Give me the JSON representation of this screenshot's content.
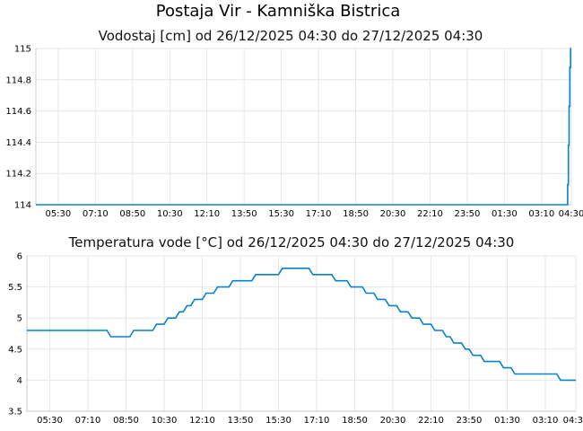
{
  "header": {
    "title": "Postaja Vir - Kamniška Bistrica"
  },
  "colors": {
    "series": "#0a82c8",
    "grid": "#e6e6e6",
    "axis": "#c8c8c8",
    "background": "#ffffff"
  },
  "chart_data": [
    {
      "type": "line",
      "title": "Vodostaj [cm] od 26/12/2025 04:30 do 27/12/2025 04:30",
      "xlabel": "",
      "ylabel": "",
      "xlim": [
        "26/12/2025 04:30",
        "27/12/2025 04:30"
      ],
      "ylim": [
        114,
        115
      ],
      "grid": true,
      "legend": "none",
      "x_tick_labels": [
        "05:30",
        "07:10",
        "08:50",
        "10:30",
        "12:10",
        "13:50",
        "15:30",
        "17:10",
        "18:50",
        "20:30",
        "22:10",
        "23:50",
        "01:30",
        "03:10",
        "04:30"
      ],
      "y_tick_labels": [
        "114",
        "114.2",
        "114.4",
        "114.6",
        "114.8",
        "115"
      ],
      "y_ticks": [
        114,
        114.2,
        114.4,
        114.6,
        114.8,
        115
      ],
      "series": [
        {
          "x": [
            "04:30",
            "04:10",
            "04:20",
            "04:20",
            "04:22",
            "04:22",
            "04:24",
            "04:24",
            "04:26",
            "04:26",
            "04:28",
            "04:28",
            "04:30"
          ],
          "values": [
            114,
            114,
            114,
            114.13,
            114.13,
            114.38,
            114.38,
            114.63,
            114.63,
            114.88,
            114.88,
            115,
            115
          ]
        }
      ]
    },
    {
      "type": "line",
      "title": "Temperatura vode [°C] od 26/12/2025 04:30 do 27/12/2025 04:30",
      "xlabel": "",
      "ylabel": "",
      "xlim": [
        "26/12/2025 04:30",
        "27/12/2025 04:30"
      ],
      "ylim": [
        3.5,
        6
      ],
      "grid": true,
      "legend": "none",
      "x_tick_labels": [
        "05:30",
        "07:10",
        "08:50",
        "10:30",
        "12:10",
        "13:50",
        "15:30",
        "17:10",
        "18:50",
        "20:30",
        "22:10",
        "23:50",
        "01:30",
        "03:10",
        "04:30"
      ],
      "y_tick_labels": [
        "3.5",
        "4",
        "4.5",
        "5",
        "5.5",
        "6"
      ],
      "y_ticks": [
        3.5,
        4,
        4.5,
        5,
        5.5,
        6
      ],
      "series": [
        {
          "x": [
            "04:30",
            "08:00",
            "08:10",
            "09:00",
            "09:10",
            "10:00",
            "10:10",
            "10:30",
            "10:40",
            "11:00",
            "11:10",
            "11:20",
            "11:30",
            "11:40",
            "11:50",
            "12:10",
            "12:20",
            "12:40",
            "12:50",
            "13:20",
            "13:30",
            "14:20",
            "14:30",
            "15:30",
            "15:40",
            "16:50",
            "17:00",
            "17:50",
            "18:00",
            "18:30",
            "18:40",
            "19:10",
            "19:20",
            "19:40",
            "19:50",
            "20:10",
            "20:20",
            "20:40",
            "20:50",
            "21:10",
            "21:20",
            "21:40",
            "21:50",
            "22:10",
            "22:20",
            "22:40",
            "22:50",
            "23:00",
            "23:10",
            "23:30",
            "23:40",
            "23:50",
            "00:00",
            "00:20",
            "00:30",
            "01:10",
            "01:20",
            "01:40",
            "01:50",
            "03:40",
            "03:50",
            "04:30"
          ],
          "values": [
            4.8,
            4.8,
            4.7,
            4.7,
            4.8,
            4.8,
            4.9,
            4.9,
            5.0,
            5.0,
            5.1,
            5.1,
            5.2,
            5.2,
            5.3,
            5.3,
            5.4,
            5.4,
            5.5,
            5.5,
            5.6,
            5.6,
            5.7,
            5.7,
            5.8,
            5.8,
            5.7,
            5.7,
            5.6,
            5.6,
            5.5,
            5.5,
            5.4,
            5.4,
            5.3,
            5.3,
            5.2,
            5.2,
            5.1,
            5.1,
            5.0,
            5.0,
            4.9,
            4.9,
            4.8,
            4.8,
            4.7,
            4.7,
            4.6,
            4.6,
            4.5,
            4.5,
            4.4,
            4.4,
            4.3,
            4.3,
            4.2,
            4.2,
            4.1,
            4.1,
            4.0,
            4.0
          ]
        }
      ]
    }
  ]
}
